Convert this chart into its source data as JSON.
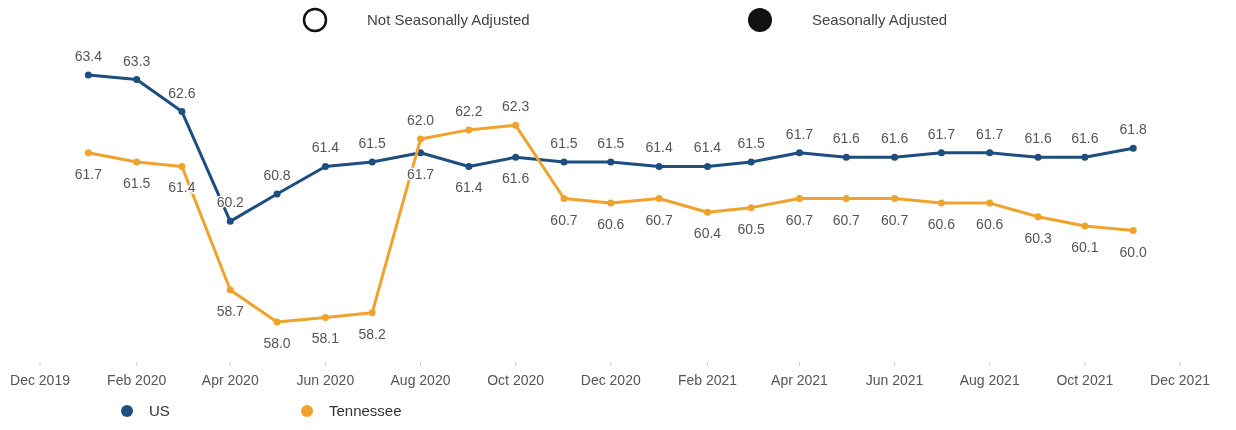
{
  "chart_data": {
    "type": "line",
    "x": [
      "2020-01",
      "2020-02",
      "2020-03",
      "2020-04",
      "2020-05",
      "2020-06",
      "2020-07",
      "2020-08",
      "2020-09",
      "2020-10",
      "2020-11",
      "2020-12",
      "2021-01",
      "2021-02",
      "2021-03",
      "2021-04",
      "2021-05",
      "2021-06",
      "2021-07",
      "2021-08",
      "2021-09",
      "2021-10",
      "2021-11"
    ],
    "series": [
      {
        "name": "US",
        "color": "#1d4e7f",
        "values": [
          63.4,
          63.3,
          62.6,
          60.2,
          60.8,
          61.4,
          61.5,
          61.7,
          61.4,
          61.6,
          61.5,
          61.5,
          61.4,
          61.4,
          61.5,
          61.7,
          61.6,
          61.6,
          61.7,
          61.7,
          61.6,
          61.6,
          61.8
        ],
        "value_labels": [
          "63.4",
          "63.3",
          "62.6",
          "60.2",
          "60.8",
          "61.4",
          "61.5",
          "61.7",
          "61.4",
          "61.6",
          "61.5",
          "61.5",
          "61.4",
          "61.4",
          "61.5",
          "61.7",
          "61.6",
          "61.6",
          "61.7",
          "61.7",
          "61.6",
          "61.6",
          "61.8"
        ]
      },
      {
        "name": "Tennessee",
        "color": "#f0a22e",
        "values": [
          61.7,
          61.5,
          61.4,
          58.7,
          58.0,
          58.1,
          58.2,
          62.0,
          62.2,
          62.3,
          60.7,
          60.6,
          60.7,
          60.4,
          60.5,
          60.7,
          60.7,
          60.7,
          60.6,
          60.6,
          60.3,
          60.1,
          60.0
        ],
        "value_labels": [
          "61.7",
          "61.5",
          "61.4",
          "58.7",
          "58.0",
          "58.1",
          "58.2",
          "62.0",
          "62.2",
          "62.3",
          "60.7",
          "60.6",
          "60.7",
          "60.4",
          "60.5",
          "60.7",
          "60.7",
          "60.7",
          "60.6",
          "60.6",
          "60.3",
          "60.1",
          "60.0"
        ]
      }
    ],
    "xlim": [
      "2019-12",
      "2021-12"
    ],
    "xticks": [
      {
        "value": "2019-12",
        "label": "Dec 2019"
      },
      {
        "value": "2020-02",
        "label": "Feb 2020"
      },
      {
        "value": "2020-04",
        "label": "Apr 2020"
      },
      {
        "value": "2020-06",
        "label": "Jun 2020"
      },
      {
        "value": "2020-08",
        "label": "Aug 2020"
      },
      {
        "value": "2020-10",
        "label": "Oct 2020"
      },
      {
        "value": "2020-12",
        "label": "Dec 2020"
      },
      {
        "value": "2021-02",
        "label": "Feb 2021"
      },
      {
        "value": "2021-04",
        "label": "Apr 2021"
      },
      {
        "value": "2021-06",
        "label": "Jun 2021"
      },
      {
        "value": "2021-08",
        "label": "Aug 2021"
      },
      {
        "value": "2021-10",
        "label": "Oct 2021"
      },
      {
        "value": "2021-12",
        "label": "Dec 2021"
      }
    ],
    "tick_labels": "x",
    "marker": "circle",
    "line_style": "solid",
    "legend": "bottom left",
    "annotations": [
      "Not Seasonally Adjusted",
      "Seasonally Adjusted"
    ]
  }
}
